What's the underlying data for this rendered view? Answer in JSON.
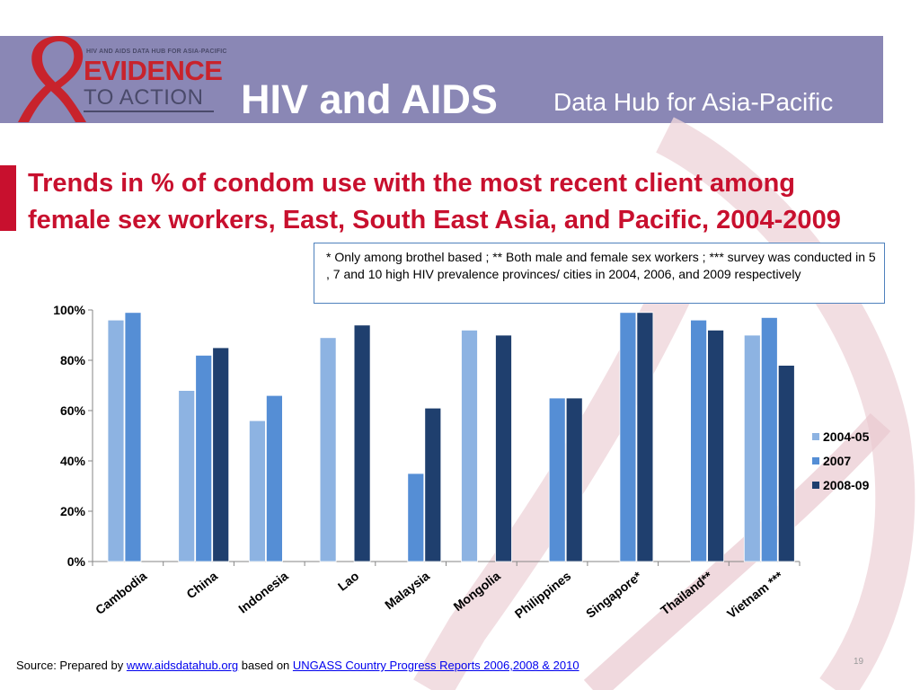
{
  "header": {
    "logo_small": "HIV AND AIDS DATA HUB FOR ASIA-PACIFIC",
    "logo_line1": "EVIDENCE",
    "logo_line2": "TO ACTION",
    "title_main": "HIV and AIDS",
    "title_sub": "Data Hub for Asia-Pacific"
  },
  "colors": {
    "header_bg": "#8a87b5",
    "title_red": "#c8102e",
    "series_2004_05": "#8db3e2",
    "series_2007": "#558ed5",
    "series_2008_09": "#1f3f6e"
  },
  "slide_title": "Trends in % of condom use with the most recent client among female sex workers, East, South East Asia, and Pacific, 2004-2009",
  "note": "*    Only among  brothel based ; ** Both male and female sex workers ; *** survey was conducted in 5 , 7 and 10 high HIV prevalence  provinces/ cities in 2004, 2006, and 2009  respectively",
  "chart_data": {
    "type": "bar",
    "categories": [
      "Cambodia",
      "China",
      "Indonesia",
      "Lao",
      "Malaysia",
      "Mongolia",
      "Philippines",
      "Singapore*",
      "Thailand**",
      "Vietnam ***"
    ],
    "series": [
      {
        "name": "2004-05",
        "values": [
          96,
          68,
          56,
          89,
          null,
          92,
          null,
          null,
          null,
          90
        ]
      },
      {
        "name": "2007",
        "values": [
          99,
          82,
          66,
          null,
          35,
          null,
          65,
          99,
          96,
          97
        ]
      },
      {
        "name": "2008-09",
        "values": [
          null,
          85,
          null,
          94,
          61,
          90,
          65,
          99,
          92,
          78
        ]
      }
    ],
    "ylim": [
      0,
      100
    ],
    "yticks": [
      "0%",
      "20%",
      "40%",
      "60%",
      "80%",
      "100%"
    ],
    "legend_position": "right",
    "grid": false
  },
  "footer": {
    "prefix": "Source: Prepared by  ",
    "link1": "www.aidsdatahub.org",
    "middle": " based on ",
    "link2": "UNGASS Country Progress Reports  2006,2008 & 2010"
  },
  "page_number": "19"
}
